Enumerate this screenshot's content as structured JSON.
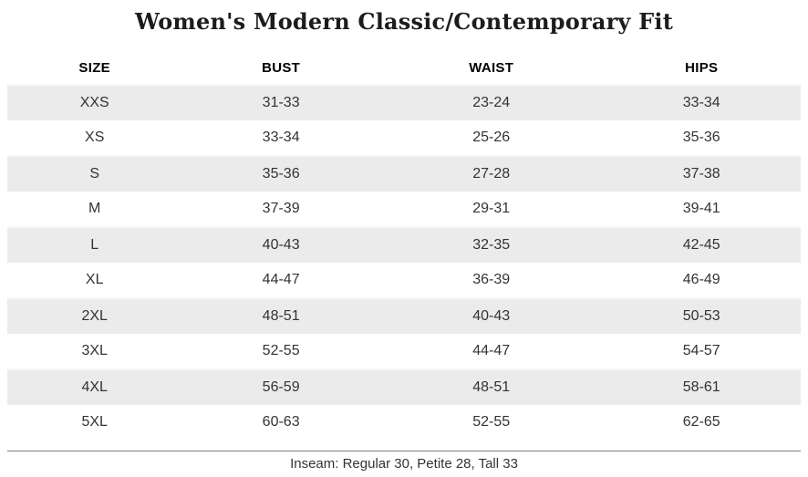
{
  "title": "Women's Modern Classic/Contemporary Fit",
  "table": {
    "columns": [
      "SIZE",
      "BUST",
      "WAIST",
      "HIPS"
    ],
    "rows": [
      {
        "size": "XXS",
        "bust": "31-33",
        "waist": "23-24",
        "hips": "33-34"
      },
      {
        "size": "XS",
        "bust": "33-34",
        "waist": "25-26",
        "hips": "35-36"
      },
      {
        "size": "S",
        "bust": "35-36",
        "waist": "27-28",
        "hips": "37-38"
      },
      {
        "size": "M",
        "bust": "37-39",
        "waist": "29-31",
        "hips": "39-41"
      },
      {
        "size": "L",
        "bust": "40-43",
        "waist": "32-35",
        "hips": "42-45"
      },
      {
        "size": "XL",
        "bust": "44-47",
        "waist": "36-39",
        "hips": "46-49"
      },
      {
        "size": "2XL",
        "bust": "48-51",
        "waist": "40-43",
        "hips": "50-53"
      },
      {
        "size": "3XL",
        "bust": "52-55",
        "waist": "44-47",
        "hips": "54-57"
      },
      {
        "size": "4XL",
        "bust": "56-59",
        "waist": "48-51",
        "hips": "58-61"
      },
      {
        "size": "5XL",
        "bust": "60-63",
        "waist": "52-55",
        "hips": "62-65"
      }
    ]
  },
  "footer": {
    "inseam_note": "Inseam: Regular 30, Petite 28, Tall 33"
  },
  "colors": {
    "row_stripe": "#ebebeb",
    "row_stripe_top_edge": "#f7f7f7",
    "cell_text": "#333333",
    "header_text": "#000000",
    "title_text": "#1c1c1c",
    "footer_rule": "#7f7f7f",
    "background": "#ffffff"
  }
}
